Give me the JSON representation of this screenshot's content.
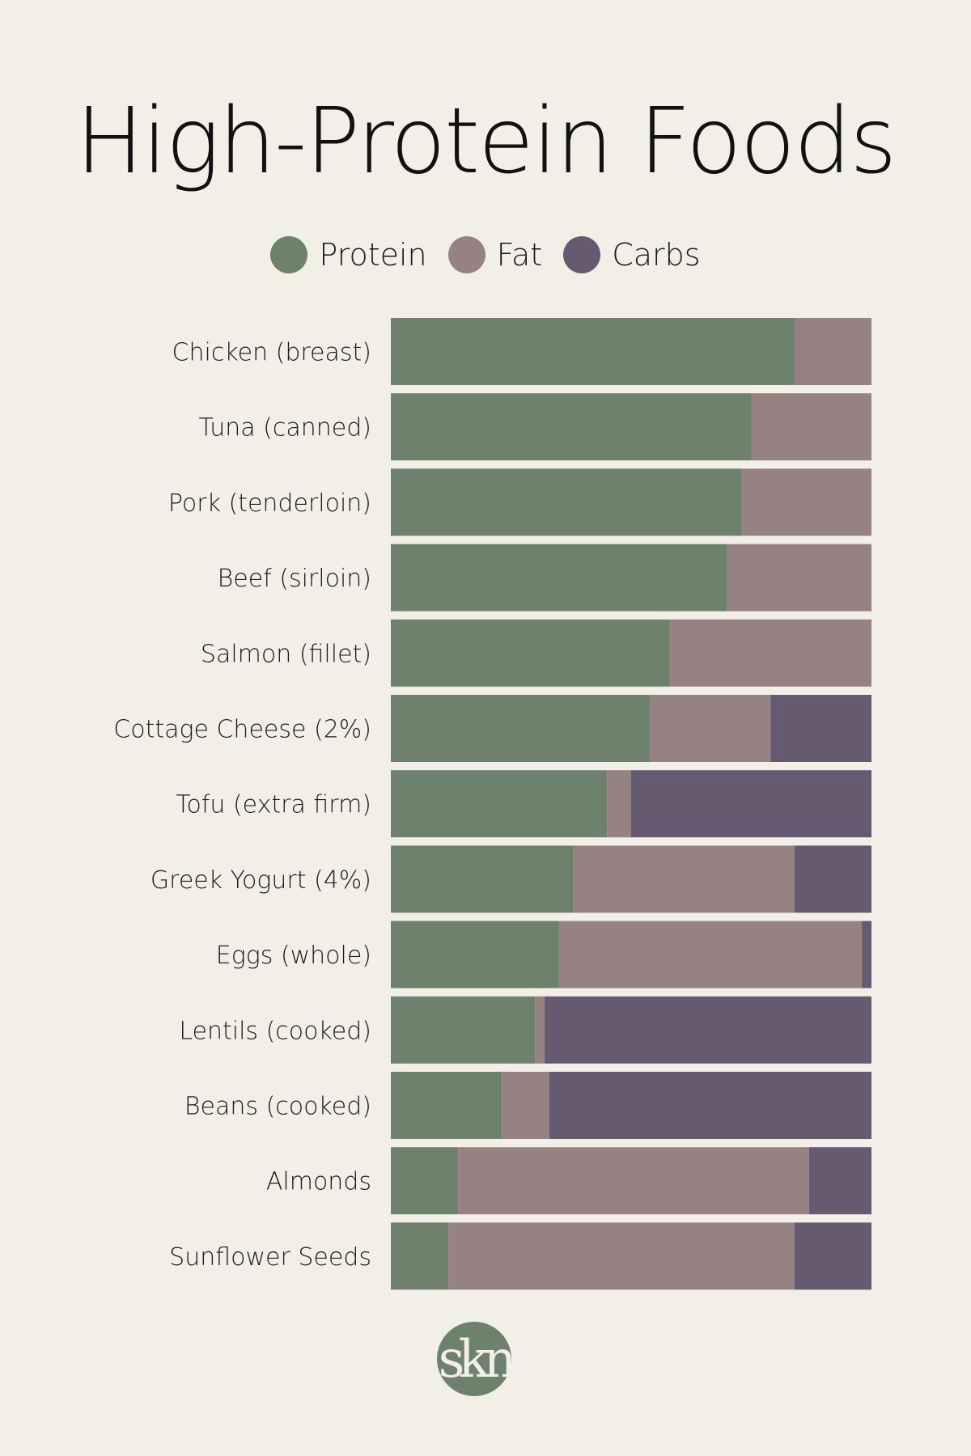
{
  "chart_data": {
    "type": "bar",
    "orientation": "horizontal",
    "stacked": true,
    "normalized": true,
    "title": "High-Protein Foods",
    "legend_placement": "top",
    "grid": false,
    "categories": [
      "Chicken (breast)",
      "Tuna (canned)",
      "Pork (tenderloin)",
      "Beef (sirloin)",
      "Salmon (fillet)",
      "Cottage Cheese (2%)",
      "Tofu (extra firm)",
      "Greek Yogurt (4%)",
      "Eggs (whole)",
      "Lentils (cooked)",
      "Beans (cooked)",
      "Almonds",
      "Sunflower Seeds"
    ],
    "series": [
      {
        "name": "Protein",
        "color": "#6e816c",
        "values": [
          84,
          75,
          73,
          70,
          58,
          54,
          45,
          38,
          35,
          30,
          23,
          14,
          12
        ]
      },
      {
        "name": "Fat",
        "color": "#968282",
        "values": [
          16,
          25,
          27,
          30,
          42,
          25,
          5,
          46,
          63,
          2,
          10,
          73,
          72
        ]
      },
      {
        "name": "Carbs",
        "color": "#665a70",
        "values": [
          0,
          0,
          0,
          0,
          0,
          21,
          50,
          16,
          2,
          68,
          67,
          13,
          16
        ]
      }
    ],
    "xlim": [
      0,
      100
    ]
  },
  "logo": {
    "text": "skn",
    "color": "#6e816c"
  }
}
